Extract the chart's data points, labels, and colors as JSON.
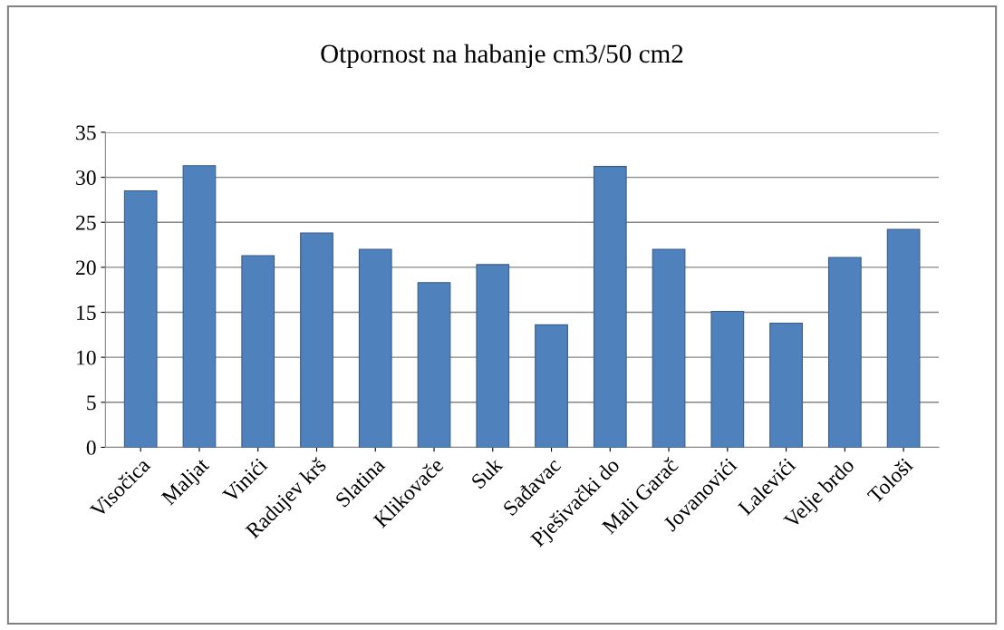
{
  "chart_data": {
    "type": "bar",
    "title": "Otpornost na habanje cm3/50 cm2",
    "categories": [
      "Visočica",
      "Maljat",
      "Vinići",
      "Radujev krš",
      "Slatina",
      "Klikovače",
      "Suk",
      "Sađavac",
      "Pješivački do",
      "Mali Garač",
      "Jovanovići",
      "Lalevići",
      "Velje brdo",
      "Tološi"
    ],
    "values": [
      28.5,
      31.3,
      21.3,
      23.8,
      22.0,
      18.3,
      20.3,
      13.6,
      31.2,
      22.0,
      15.1,
      13.8,
      21.1,
      24.2
    ],
    "color": "#4f81bd",
    "ylim": [
      0,
      35
    ],
    "yticks": [
      0,
      5,
      10,
      15,
      20,
      25,
      30,
      35
    ],
    "grid": "y"
  }
}
